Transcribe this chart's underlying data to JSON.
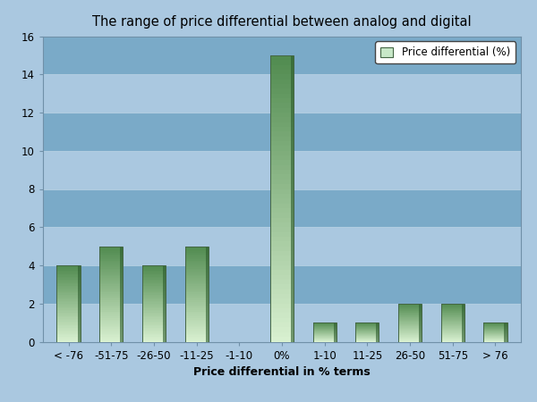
{
  "categories": [
    "< -76",
    "-51-75",
    "-26-50",
    "-11-25",
    "-1-10",
    "0%",
    "1-10",
    "11-25",
    "26-50",
    "51-75",
    "> 76"
  ],
  "values": [
    4,
    5,
    4,
    5,
    0,
    15,
    1,
    1,
    2,
    2,
    1
  ],
  "title": "The range of price differential between analog and digital",
  "xlabel": "Price differential in % terms",
  "ylim": [
    0,
    16
  ],
  "yticks": [
    0,
    2,
    4,
    6,
    8,
    10,
    12,
    14,
    16
  ],
  "legend_label": "Price differential (%)",
  "bar_color_light": "#d4f0d4",
  "bar_color_dark": "#3a7a3a",
  "bar_edge_color": "#446644",
  "bg_light": "#aac8e0",
  "bg_dark": "#7aaac8",
  "grid_color": "#c0d8ec",
  "outer_bg": "#aac8e0",
  "title_fontsize": 10.5,
  "axis_label_fontsize": 9,
  "tick_fontsize": 8.5,
  "bar_width": 0.55
}
